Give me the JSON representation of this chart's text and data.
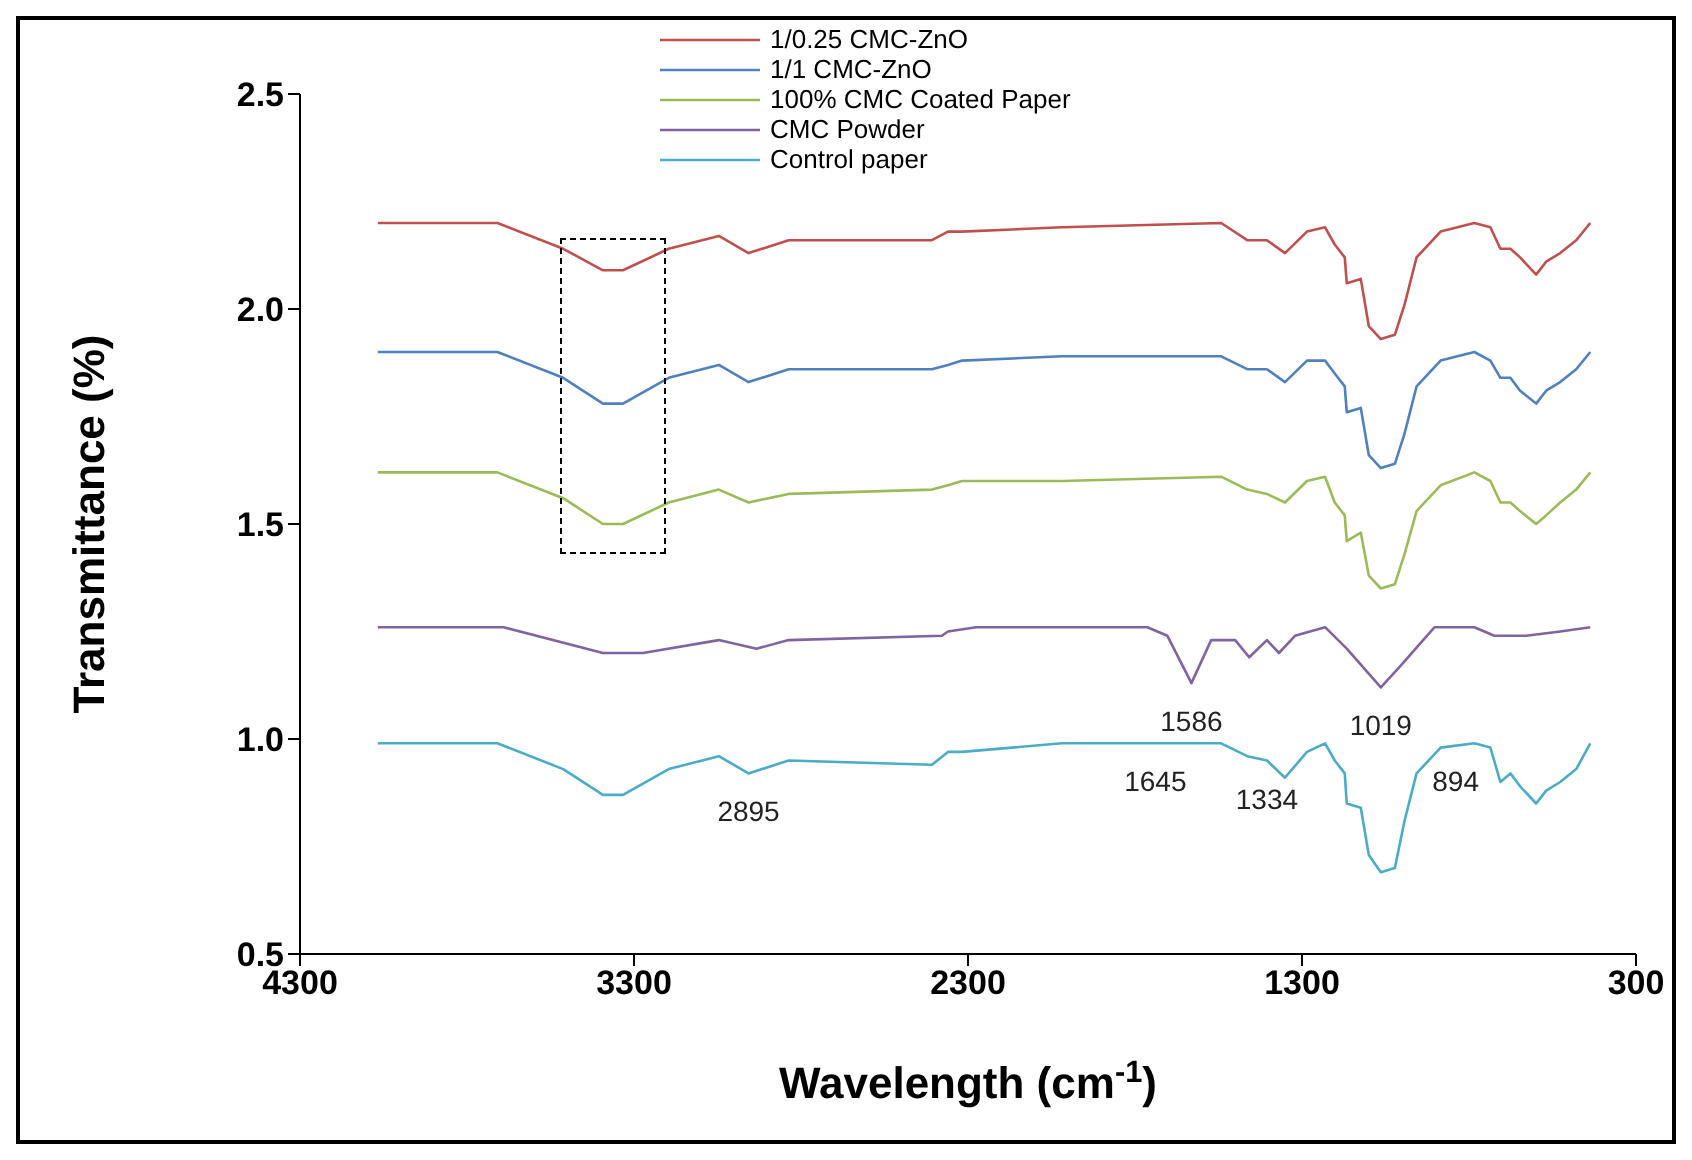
{
  "chart_data": {
    "type": "line",
    "xlabel": "Wavelength (cm$^{-1}$)",
    "ylabel": "Transmittance (%)",
    "xlim": [
      4300,
      300
    ],
    "xticks": [
      4300,
      3300,
      2300,
      1300,
      300
    ],
    "ylim": [
      0.5,
      2.5
    ],
    "yticks": [
      0.5,
      {
        "value": 1,
        "label": "1.0"
      },
      1.5,
      {
        "value": 2,
        "label": "2.0"
      },
      2.5
    ],
    "legend": "top",
    "grid": false,
    "marker": "none",
    "line_style": "solid",
    "x": [
      4067,
      3709,
      3512,
      3393,
      3333,
      3196,
      3046,
      2957,
      2837,
      2408,
      2360,
      2318,
      2019,
      1542,
      1464,
      1405,
      1351,
      1285,
      1231,
      1202,
      1172,
      1166,
      1124,
      1100,
      1064,
      1022,
      993,
      957,
      885,
      784,
      736,
      706,
      676,
      647,
      599,
      569,
      527,
      479,
      437
    ],
    "series": [
      {
        "name": "1/0.25 CMC-ZnO",
        "color": "#c0504d",
        "values": [
          2.2,
          2.2,
          2.14,
          2.09,
          2.09,
          2.14,
          2.17,
          2.13,
          2.16,
          2.16,
          2.18,
          2.18,
          2.19,
          2.2,
          2.16,
          2.16,
          2.13,
          2.18,
          2.19,
          2.15,
          2.12,
          2.06,
          2.07,
          1.96,
          1.93,
          1.94,
          2.01,
          2.12,
          2.18,
          2.2,
          2.19,
          2.14,
          2.14,
          2.12,
          2.08,
          2.11,
          2.13,
          2.16,
          2.2
        ]
      },
      {
        "name": "1/1 CMC-ZnO",
        "color": "#4f81bd",
        "values": [
          1.9,
          1.9,
          1.84,
          1.78,
          1.78,
          1.84,
          1.87,
          1.83,
          1.86,
          1.86,
          1.87,
          1.88,
          1.89,
          1.89,
          1.86,
          1.86,
          1.83,
          1.88,
          1.88,
          1.85,
          1.82,
          1.76,
          1.77,
          1.66,
          1.63,
          1.64,
          1.71,
          1.82,
          1.88,
          1.9,
          1.88,
          1.84,
          1.84,
          1.81,
          1.78,
          1.81,
          1.83,
          1.86,
          1.9
        ]
      },
      {
        "name": "100% CMC Coated Paper",
        "color": "#9bbb59",
        "values": [
          1.62,
          1.62,
          1.56,
          1.5,
          1.5,
          1.55,
          1.58,
          1.55,
          1.57,
          1.58,
          1.59,
          1.6,
          1.6,
          1.61,
          1.58,
          1.57,
          1.55,
          1.6,
          1.61,
          1.55,
          1.52,
          1.46,
          1.48,
          1.38,
          1.35,
          1.36,
          1.43,
          1.53,
          1.59,
          1.62,
          1.6,
          1.55,
          1.55,
          1.53,
          1.5,
          1.52,
          1.55,
          1.58,
          1.62
        ]
      },
      {
        "name": "CMC Powder",
        "color": "#8064a2",
        "x": [
          4067,
          3691,
          3393,
          3273,
          3046,
          2933,
          2837,
          2378,
          2360,
          2276,
          1763,
          1703,
          1631,
          1572,
          1500,
          1458,
          1405,
          1369,
          1321,
          1231,
          1166,
          1064,
          1005,
          903,
          784,
          724,
          629,
          527,
          437
        ],
        "values": [
          1.26,
          1.26,
          1.2,
          1.2,
          1.23,
          1.21,
          1.23,
          1.24,
          1.25,
          1.26,
          1.26,
          1.24,
          1.13,
          1.23,
          1.23,
          1.19,
          1.23,
          1.2,
          1.24,
          1.26,
          1.21,
          1.12,
          1.17,
          1.26,
          1.26,
          1.24,
          1.24,
          1.25,
          1.26
        ]
      },
      {
        "name": "Control paper",
        "color": "#4bacc6",
        "values": [
          0.99,
          0.99,
          0.93,
          0.87,
          0.87,
          0.93,
          0.96,
          0.92,
          0.95,
          0.94,
          0.97,
          0.97,
          0.99,
          0.99,
          0.96,
          0.95,
          0.91,
          0.97,
          0.99,
          0.95,
          0.92,
          0.85,
          0.84,
          0.73,
          0.69,
          0.7,
          0.81,
          0.92,
          0.98,
          0.99,
          0.98,
          0.9,
          0.92,
          0.89,
          0.85,
          0.88,
          0.9,
          0.93,
          0.99
        ]
      }
    ],
    "annotations": [
      {
        "text": "2895",
        "x": 2957,
        "y": 0.92
      },
      {
        "text": "1586",
        "x": 1631,
        "y": 1.13
      },
      {
        "text": "1019",
        "x": 1064,
        "y": 1.12
      },
      {
        "text": "1645",
        "x": 1739,
        "y": 0.99
      },
      {
        "text": "1334",
        "x": 1405,
        "y": 0.95
      },
      {
        "text": "894",
        "x": 840,
        "y": 0.99
      }
    ]
  }
}
